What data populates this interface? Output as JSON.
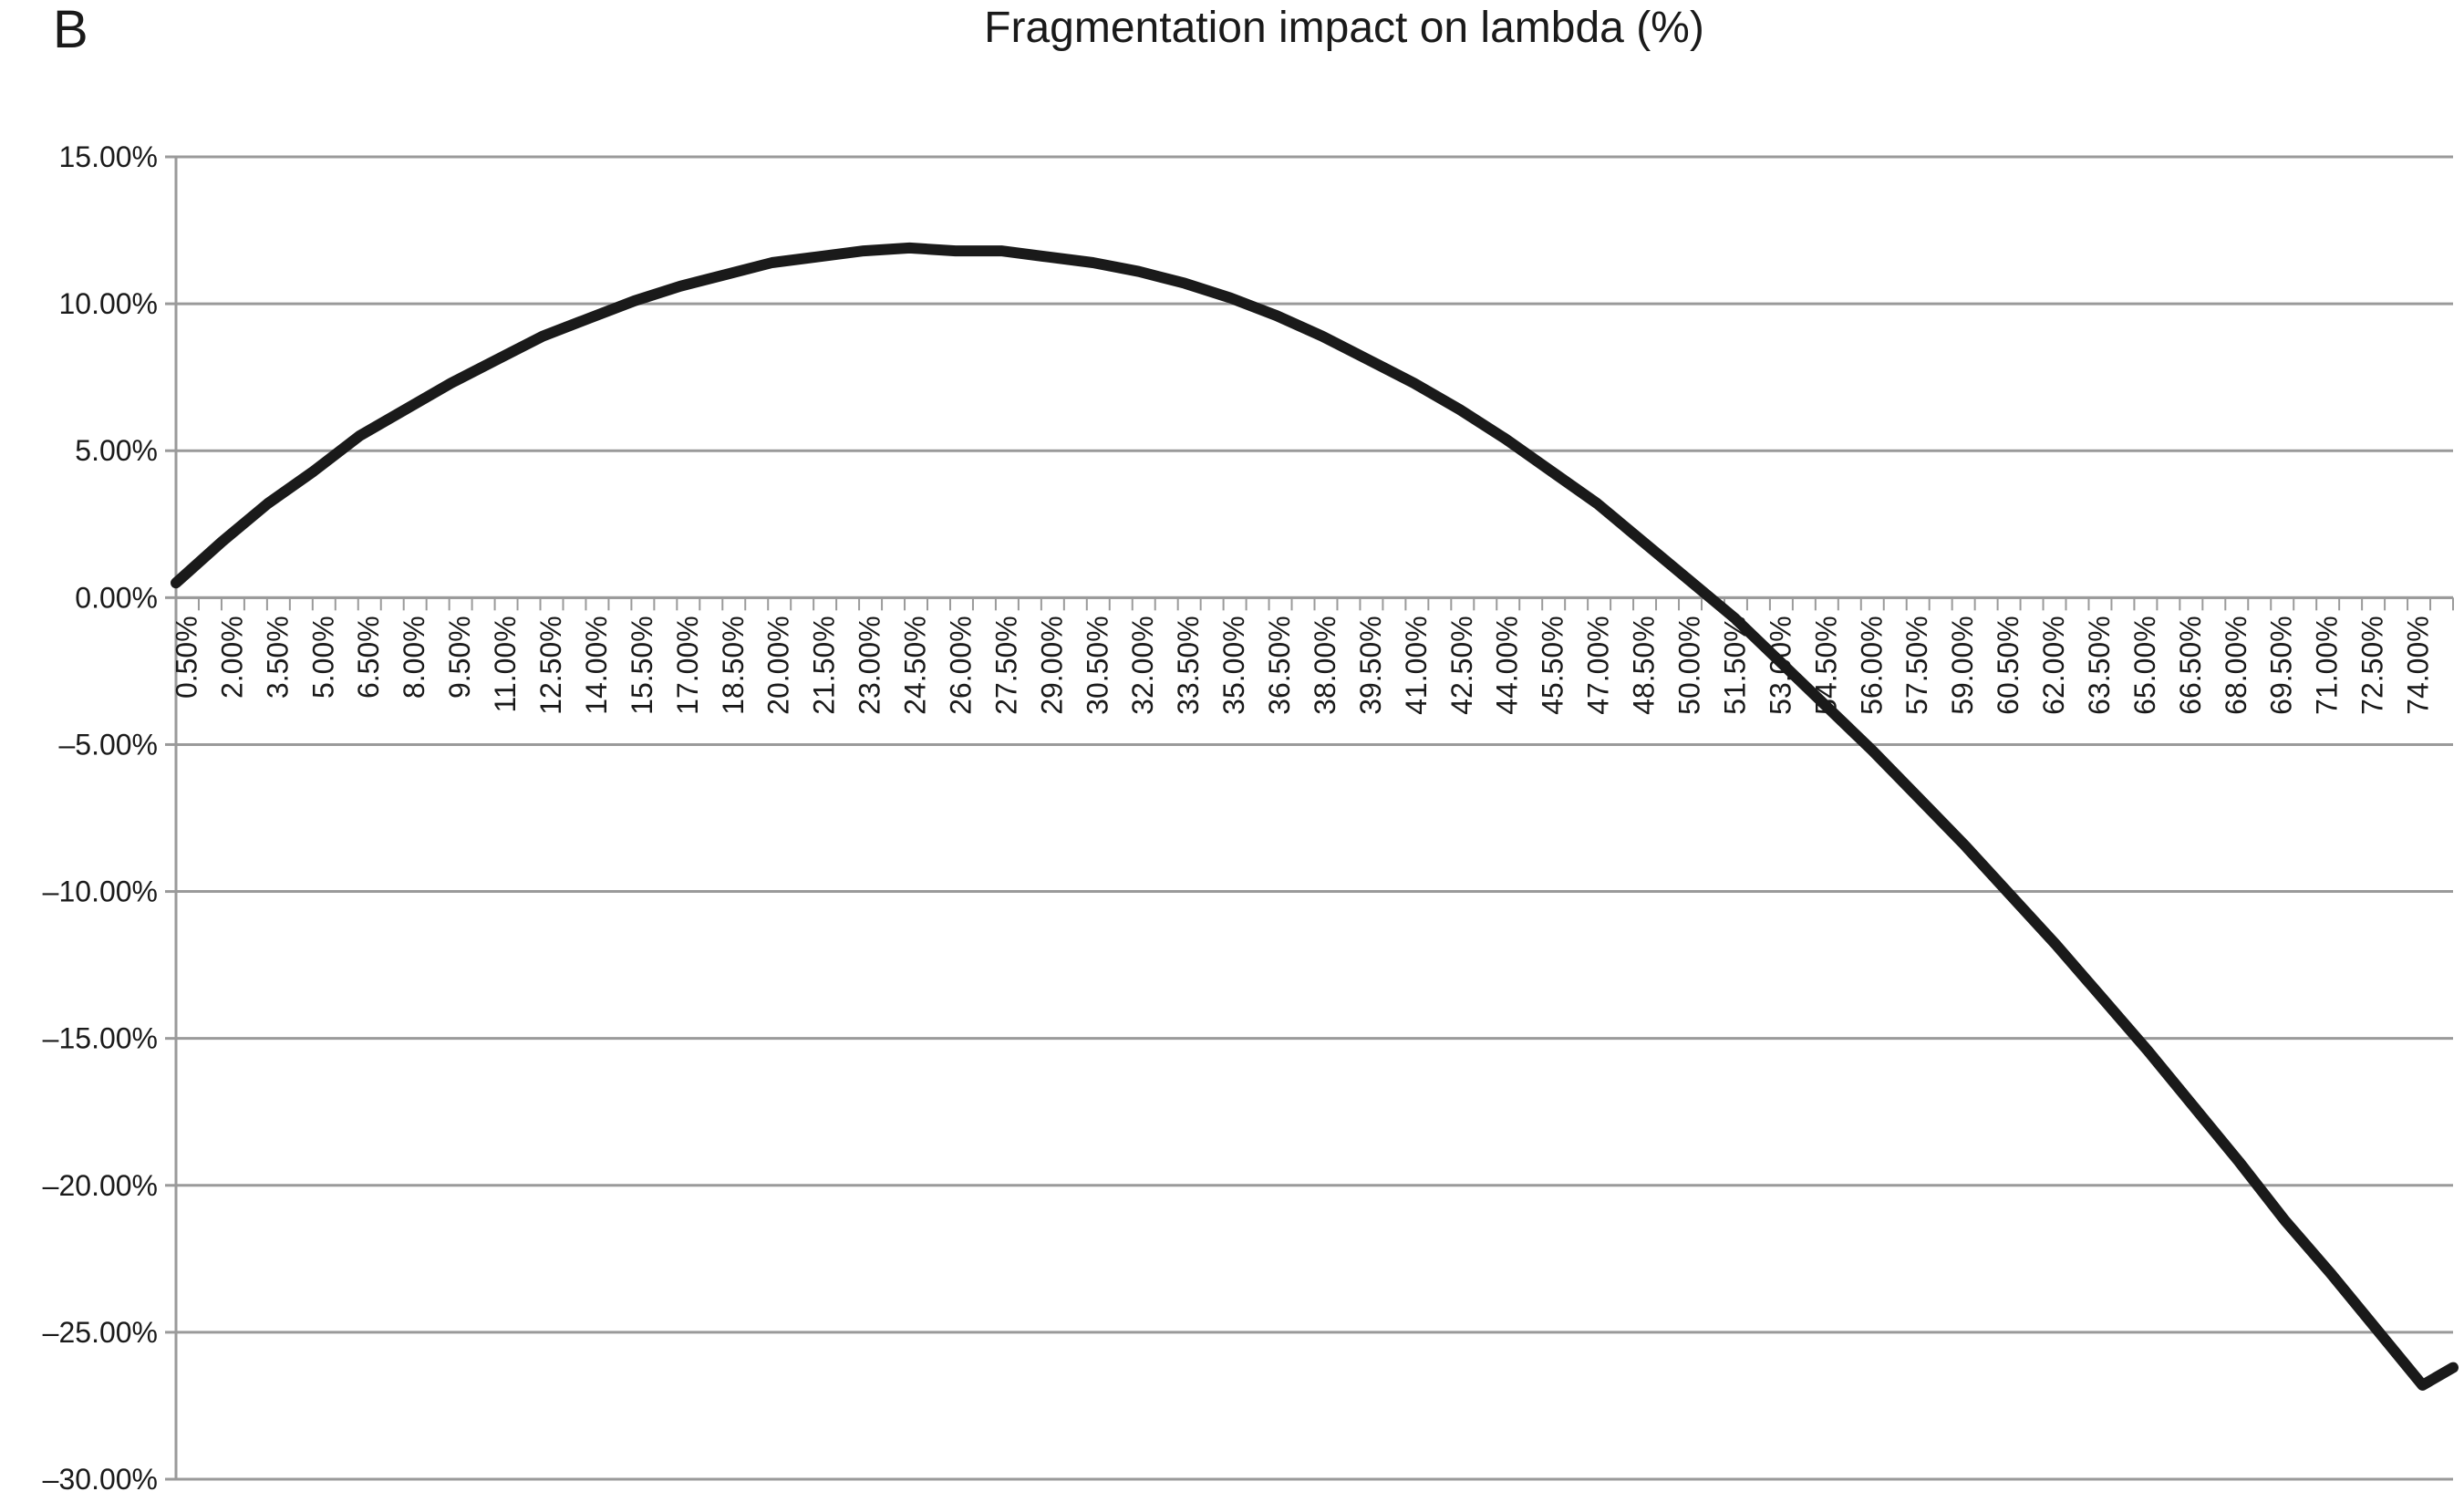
{
  "chart_data": {
    "type": "line",
    "panel_label": "B",
    "title": "Fragmentation impact on lambda (%)",
    "xlabel": "",
    "ylabel": "",
    "ylim": [
      -0.3,
      0.15
    ],
    "yticks": [
      0.15,
      0.1,
      0.05,
      0.0,
      -0.05,
      -0.1,
      -0.15,
      -0.2,
      -0.25,
      -0.3
    ],
    "ytick_labels": [
      "15.00%",
      "10.00%",
      "5.00%",
      "0.00%",
      "–5.00%",
      "–10.00%",
      "–15.00%",
      "–20.00%",
      "–25.00%",
      "–30.00%"
    ],
    "grid": true,
    "legend": "none",
    "line_color": "#1a1a1a",
    "grid_color": "#9a9a9a",
    "x_labels": [
      "0.50%",
      "2.00%",
      "3.50%",
      "5.00%",
      "6.50%",
      "8.00%",
      "9.50%",
      "11.00%",
      "12.50%",
      "14.00%",
      "15.50%",
      "17.00%",
      "18.50%",
      "20.00%",
      "21.50%",
      "23.00%",
      "24.50%",
      "26.00%",
      "27.50%",
      "29.00%",
      "30.50%",
      "32.00%",
      "33.50%",
      "35.00%",
      "36.50%",
      "38.00%",
      "39.50%",
      "41.00%",
      "42.50%",
      "44.00%",
      "45.50%",
      "47.00%",
      "48.50%",
      "50.00%",
      "51.50%",
      "53.00%",
      "54.50%",
      "56.00%",
      "57.50%",
      "59.00%",
      "60.50%",
      "62.00%",
      "63.50%",
      "65.00%",
      "66.50%",
      "68.00%",
      "69.50%",
      "71.00%",
      "72.50%",
      "74.00%"
    ],
    "x": [
      0.005,
      0.02,
      0.035,
      0.05,
      0.065,
      0.08,
      0.095,
      0.11,
      0.125,
      0.14,
      0.155,
      0.17,
      0.185,
      0.2,
      0.215,
      0.23,
      0.245,
      0.26,
      0.275,
      0.29,
      0.305,
      0.32,
      0.335,
      0.35,
      0.365,
      0.38,
      0.395,
      0.41,
      0.425,
      0.44,
      0.455,
      0.47,
      0.485,
      0.5,
      0.515,
      0.53,
      0.545,
      0.56,
      0.575,
      0.59,
      0.605,
      0.62,
      0.635,
      0.65,
      0.665,
      0.68,
      0.695,
      0.71,
      0.725,
      0.74,
      0.75
    ],
    "series": [
      {
        "values": [
          0.005,
          0.019,
          0.032,
          0.043,
          0.055,
          0.064,
          0.073,
          0.081,
          0.089,
          0.095,
          0.101,
          0.106,
          0.11,
          0.114,
          0.116,
          0.118,
          0.119,
          0.118,
          0.118,
          0.116,
          0.114,
          0.111,
          0.107,
          0.102,
          0.096,
          0.089,
          0.081,
          0.073,
          0.064,
          0.054,
          0.043,
          0.032,
          0.019,
          0.006,
          -0.007,
          -0.022,
          -0.037,
          -0.052,
          -0.068,
          -0.084,
          -0.101,
          -0.118,
          -0.136,
          -0.154,
          -0.173,
          -0.192,
          -0.212,
          -0.23,
          -0.249,
          -0.268,
          -0.262
        ]
      }
    ]
  }
}
